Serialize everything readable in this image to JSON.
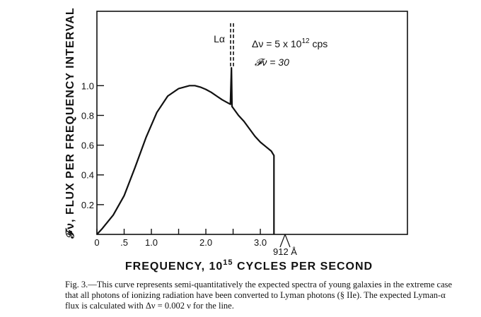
{
  "chart_data": {
    "type": "line",
    "xlabel": "FREQUENCY, 10",
    "xlabel_sup": "15",
    "xlabel_tail": " CYCLES PER SECOND",
    "ylabel": "𝓕ν, FLUX PER FREQUENCY INTERVAL",
    "xlim": [
      0,
      5.7
    ],
    "ylim": [
      0,
      1.5
    ],
    "x_ticks": [
      0,
      0.5,
      1.0,
      1.5,
      2.0,
      2.5,
      3.0,
      3.25
    ],
    "x_tick_labels": [
      "0",
      ".5",
      "1.0",
      "",
      "2.0",
      "",
      "3.0",
      ""
    ],
    "y_ticks": [
      0.2,
      0.4,
      0.6,
      0.8,
      1.0
    ],
    "y_tick_labels": [
      "0.2",
      "0.4",
      "0.6",
      "0.8",
      "1.0"
    ],
    "series": [
      {
        "x": [
          0,
          0.1,
          0.3,
          0.5,
          0.7,
          0.9,
          1.1,
          1.3,
          1.5,
          1.7,
          1.8,
          1.9,
          2.0,
          2.1,
          2.2,
          2.3,
          2.4,
          2.45,
          2.47,
          2.48,
          2.5,
          2.6,
          2.7,
          2.8,
          2.9,
          3.0,
          3.1,
          3.2,
          3.25,
          3.25
        ],
        "y": [
          0,
          0.04,
          0.13,
          0.26,
          0.45,
          0.65,
          0.82,
          0.93,
          0.98,
          1.0,
          1.0,
          0.99,
          0.975,
          0.955,
          0.93,
          0.905,
          0.885,
          0.875,
          1.12,
          0.86,
          0.85,
          0.8,
          0.76,
          0.71,
          0.66,
          0.62,
          0.59,
          0.56,
          0.53,
          0
        ]
      }
    ],
    "line_annotation": {
      "label": "Lα",
      "x": 2.48,
      "y_from": 1.12,
      "y_to": 1.42,
      "style": "dashed"
    },
    "annotations": [
      {
        "text": "Δν = 5 x 10",
        "sup": "12",
        "tail": " cps"
      },
      {
        "text": "𝓕ν = 30"
      }
    ],
    "edge_label": "912 Å",
    "edge_x": 3.25
  },
  "caption": "Fig. 3.—This curve represents semi-quantitatively the expected spectra of young galaxies in the extreme case that all photons of ionizing radiation have been converted to Lyman photons (§ IIe). The expected Lyman-α flux is calculated with Δν = 0.002 ν for the line."
}
